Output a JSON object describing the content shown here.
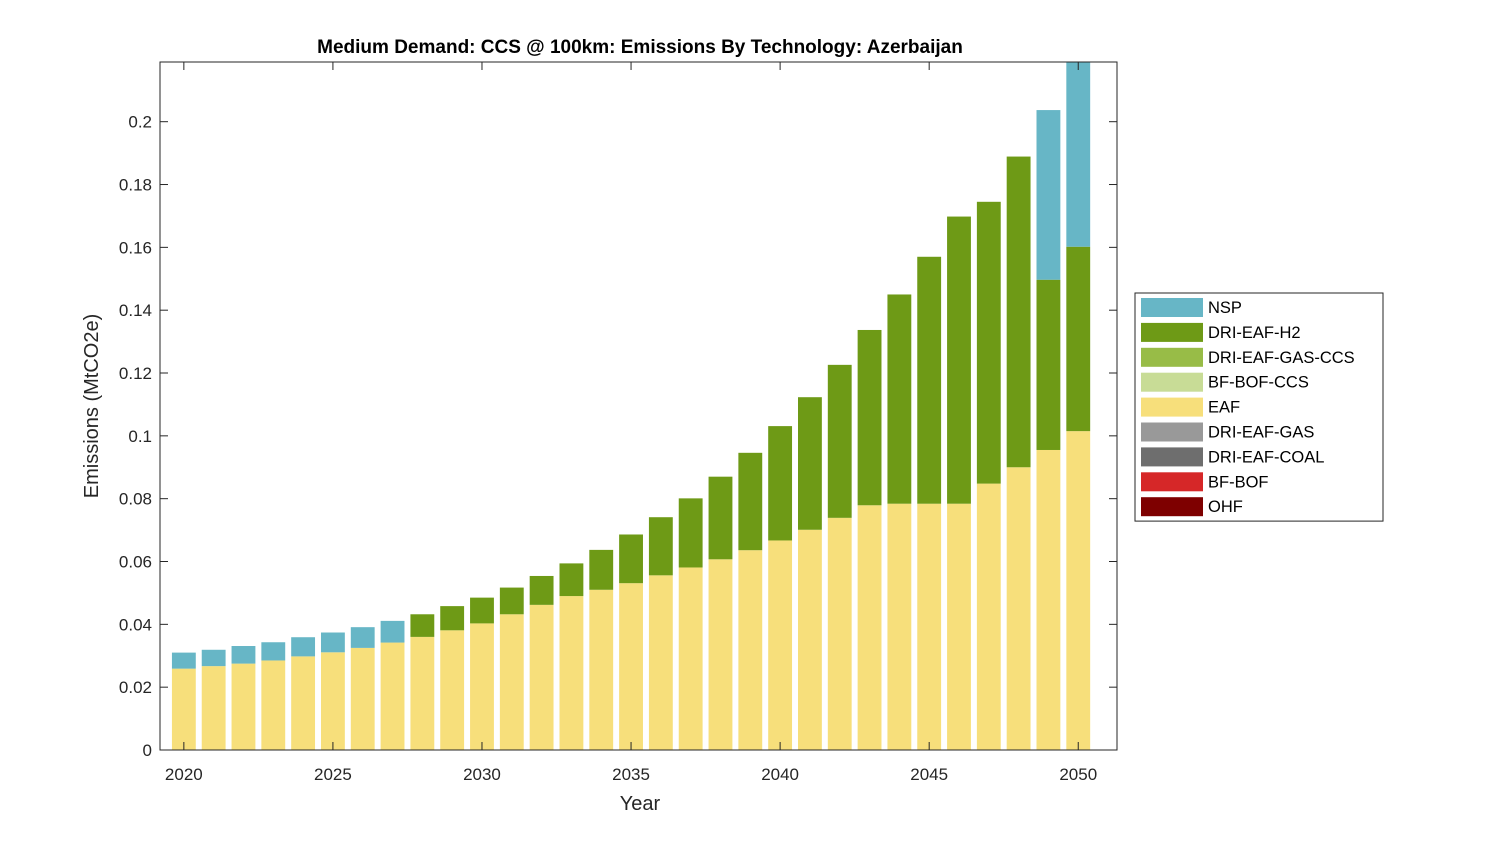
{
  "chart_data": {
    "type": "bar",
    "stacked": true,
    "title": "Medium Demand: CCS @ 100km: Emissions By Technology: Azerbaijan",
    "xlabel": "Year",
    "ylabel": "Emissions (MtCO2e)",
    "xlim": [
      2019.2,
      2051.3
    ],
    "ylim": [
      0,
      0.219
    ],
    "x_ticks": [
      2020,
      2025,
      2030,
      2035,
      2040,
      2045,
      2050
    ],
    "y_ticks": [
      0,
      0.02,
      0.04,
      0.06,
      0.08,
      0.1,
      0.12,
      0.14,
      0.16,
      0.18,
      0.2
    ],
    "y_tick_labels": [
      "0",
      "0.02",
      "0.04",
      "0.06",
      "0.08",
      "0.1",
      "0.12",
      "0.14",
      "0.16",
      "0.18",
      "0.2"
    ],
    "grid": false,
    "legend_position": "right",
    "categories": [
      2020,
      2021,
      2022,
      2023,
      2024,
      2025,
      2026,
      2027,
      2028,
      2029,
      2030,
      2031,
      2032,
      2033,
      2034,
      2035,
      2036,
      2037,
      2038,
      2039,
      2040,
      2041,
      2042,
      2043,
      2044,
      2045,
      2046,
      2047,
      2048,
      2049,
      2050
    ],
    "series": [
      {
        "name": "OHF",
        "color": "#7e0000",
        "values": [
          0,
          0,
          0,
          0,
          0,
          0,
          0,
          0,
          0,
          0,
          0,
          0,
          0,
          0,
          0,
          0,
          0,
          0,
          0,
          0,
          0,
          0,
          0,
          0,
          0,
          0,
          0,
          0,
          0,
          0,
          0
        ]
      },
      {
        "name": "BF-BOF",
        "color": "#d62728",
        "values": [
          0,
          0,
          0,
          0,
          0,
          0,
          0,
          0,
          0,
          0,
          0,
          0,
          0,
          0,
          0,
          0,
          0,
          0,
          0,
          0,
          0,
          0,
          0,
          0,
          0,
          0,
          0,
          0,
          0,
          0,
          0
        ]
      },
      {
        "name": "DRI-EAF-COAL",
        "color": "#6e6e6e",
        "values": [
          0,
          0,
          0,
          0,
          0,
          0,
          0,
          0,
          0,
          0,
          0,
          0,
          0,
          0,
          0,
          0,
          0,
          0,
          0,
          0,
          0,
          0,
          0,
          0,
          0,
          0,
          0,
          0,
          0,
          0,
          0
        ]
      },
      {
        "name": "DRI-EAF-GAS",
        "color": "#999999",
        "values": [
          0,
          0,
          0,
          0,
          0,
          0,
          0,
          0,
          0,
          0,
          0,
          0,
          0,
          0,
          0,
          0,
          0,
          0,
          0,
          0,
          0,
          0,
          0,
          0,
          0,
          0,
          0,
          0,
          0,
          0,
          0
        ]
      },
      {
        "name": "EAF",
        "color": "#f7df7b",
        "values": [
          0.0259,
          0.0267,
          0.0275,
          0.0285,
          0.0298,
          0.0311,
          0.0325,
          0.0342,
          0.036,
          0.0381,
          0.0403,
          0.0432,
          0.0462,
          0.049,
          0.051,
          0.0531,
          0.0556,
          0.0581,
          0.0607,
          0.0636,
          0.0667,
          0.0701,
          0.0739,
          0.0779,
          0.0784,
          0.0784,
          0.0784,
          0.0848,
          0.09,
          0.0955,
          0.1015
        ]
      },
      {
        "name": "BF-BOF-CCS",
        "color": "#c8dc96",
        "values": [
          0,
          0,
          0,
          0,
          0,
          0,
          0,
          0,
          0,
          0,
          0,
          0,
          0,
          0,
          0,
          0,
          0,
          0,
          0,
          0,
          0,
          0,
          0,
          0,
          0,
          0,
          0,
          0,
          0,
          0,
          0
        ]
      },
      {
        "name": "DRI-EAF-GAS-CCS",
        "color": "#98bc47",
        "values": [
          0,
          0,
          0,
          0,
          0,
          0,
          0,
          0,
          0,
          0,
          0,
          0,
          0,
          0,
          0,
          0,
          0,
          0,
          0,
          0,
          0,
          0,
          0,
          0,
          0,
          0,
          0,
          0,
          0,
          0,
          0
        ]
      },
      {
        "name": "DRI-EAF-H2",
        "color": "#6e9a16",
        "values": [
          0,
          0,
          0,
          0,
          0,
          0,
          0,
          0,
          0.0072,
          0.0077,
          0.0082,
          0.0085,
          0.0092,
          0.0104,
          0.0127,
          0.0155,
          0.0185,
          0.022,
          0.0263,
          0.031,
          0.0364,
          0.0422,
          0.0487,
          0.0558,
          0.0666,
          0.0786,
          0.0914,
          0.0897,
          0.0989,
          0.0542,
          0.0587
        ]
      },
      {
        "name": "NSP",
        "color": "#67b6c6",
        "values": [
          0.0051,
          0.0052,
          0.0056,
          0.0058,
          0.0061,
          0.0063,
          0.0066,
          0.0069,
          0,
          0,
          0,
          0,
          0,
          0,
          0,
          0,
          0,
          0,
          0,
          0,
          0,
          0,
          0,
          0,
          0,
          0,
          0,
          0,
          0,
          0.054,
          0.06
        ]
      }
    ],
    "legend_order": [
      "NSP",
      "DRI-EAF-H2",
      "DRI-EAF-GAS-CCS",
      "BF-BOF-CCS",
      "EAF",
      "DRI-EAF-GAS",
      "DRI-EAF-COAL",
      "BF-BOF",
      "OHF"
    ]
  }
}
